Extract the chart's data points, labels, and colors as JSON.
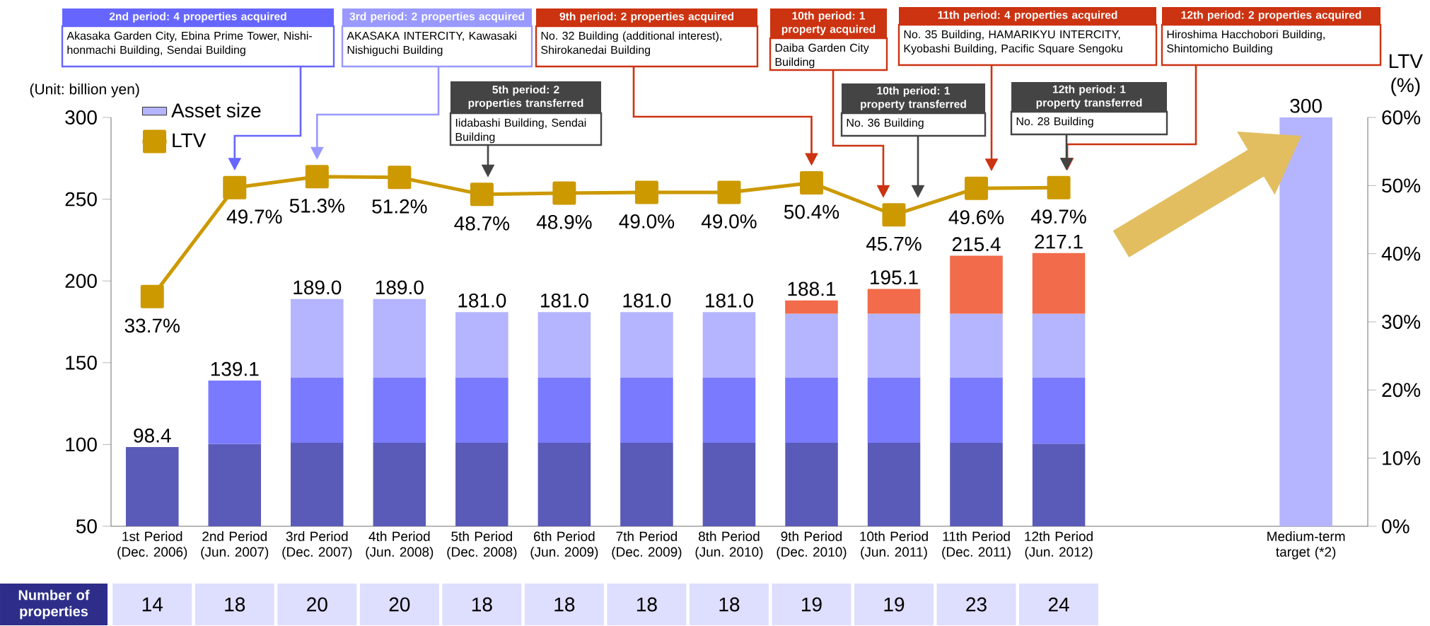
{
  "chart_data": [
    {
      "type": "bar",
      "stacked": true,
      "ylabel": "(Unit: billion yen)",
      "y2label": "LTV (%)",
      "legend": "top left",
      "marker": "square",
      "categories": [
        "1st Period (Dec. 2006)",
        "2nd Period (Jun. 2007)",
        "3rd Period (Dec. 2007)",
        "4th Period (Jun. 2008)",
        "5th Period (Dec. 2008)",
        "6th Period (Jun. 2009)",
        "7th Period (Dec. 2009)",
        "8th Period (Jun. 2010)",
        "9th Period (Dec. 2010)",
        "10th Period (Jun. 2011)",
        "11th Period (Dec. 2011)",
        "12th Period (Jun. 2012)",
        null,
        null,
        "Medium-term target (*2)"
      ],
      "ylim": [
        50,
        300
      ],
      "yticks": [
        50,
        100,
        150,
        200,
        250,
        300
      ],
      "y2lim": [
        0,
        60
      ],
      "y2ticks": [
        {
          "value": 0,
          "label": "0%"
        },
        {
          "value": 10,
          "label": "10%"
        },
        {
          "value": 20,
          "label": "20%"
        },
        {
          "value": 30,
          "label": "30%"
        },
        {
          "value": 40,
          "label": "40%"
        },
        {
          "value": 50,
          "label": "50%"
        },
        {
          "value": 60,
          "label": "60%"
        }
      ],
      "series": [
        {
          "color": "#5a5ab8",
          "values": [
            98.4,
            100.4,
            101,
            101,
            101,
            101,
            101,
            101,
            101,
            101,
            101,
            100.5,
            null,
            null,
            null
          ]
        },
        {
          "color": "#7a7aff",
          "base": [
            null,
            100.4,
            101,
            101,
            101,
            101,
            101,
            101,
            101,
            101,
            101,
            100.5,
            null,
            null,
            null
          ],
          "values": [
            null,
            38.7,
            40,
            40,
            40,
            40,
            40,
            40,
            40,
            40,
            40,
            40.5,
            null,
            null,
            null
          ]
        },
        {
          "name": "Asset size",
          "color": "#b4b4ff",
          "base": [
            null,
            null,
            141,
            141,
            141,
            141,
            141,
            141,
            141,
            141,
            141,
            141,
            null,
            null,
            null
          ],
          "values": [
            null,
            null,
            48,
            48,
            40,
            40,
            40,
            40,
            39,
            39,
            39,
            39,
            null,
            null,
            300
          ]
        },
        {
          "color": "#f26b4a",
          "base": [
            null,
            null,
            null,
            null,
            null,
            null,
            null,
            null,
            180,
            180,
            180,
            180,
            null,
            null,
            null
          ],
          "values": [
            null,
            null,
            null,
            null,
            null,
            null,
            null,
            null,
            8.1,
            15.1,
            35.4,
            37.1,
            null,
            null,
            null
          ]
        },
        {
          "name": "LTV",
          "type": "line",
          "axis": "y2",
          "color": "#cc9900",
          "values": [
            33.7,
            49.7,
            51.3,
            51.2,
            48.7,
            48.9,
            49.0,
            49.0,
            50.4,
            45.7,
            49.6,
            49.7,
            null,
            null,
            null
          ],
          "value_labels": [
            "33.7%",
            "49.7%",
            "51.3%",
            "51.2%",
            "48.7%",
            "48.9%",
            "49.0%",
            "49.0%",
            "50.4%",
            "45.7%",
            "49.6%",
            "49.7%",
            null,
            null,
            null
          ]
        }
      ],
      "totals": [
        "98.4",
        "139.1",
        "189.0",
        "189.0",
        "181.0",
        "181.0",
        "181.0",
        "181.0",
        "188.1",
        "195.1",
        "215.4",
        "217.1",
        null,
        null,
        "300"
      ],
      "annotations": [
        "2nd period: 4 properties acquired",
        "Akasaka Garden City, Ebina Prime Tower, Nishi-honmachi Building, Sendai Building",
        "3rd period: 2 properties acquired",
        "AKASAKA INTERCITY, Kawasaki Nishiguchi Building",
        "9th period: 2 properties acquired",
        "No. 32 Building (additional interest), Shirokanedai Building",
        "10th period: 1 property acquired",
        "Daiba Garden City Building",
        "11th period: 4 properties acquired",
        "No. 35 Building, HAMARIKYU INTERCITY, Kyobashi Building, Pacific Square Sengoku",
        "12th period: 2 properties acquired",
        "Hiroshima Hacchobori Building, Shintomicho Building",
        "5th period: 2 properties transferred",
        "Iidabashi Building, Sendai Building",
        "10th period: 1 property transferred",
        "No. 36 Building",
        "12th period: 1 property transferred",
        "No. 28 Building"
      ]
    },
    {
      "type": "other",
      "title": "Number of properties",
      "values": [
        14,
        18,
        20,
        20,
        18,
        18,
        18,
        18,
        19,
        19,
        23,
        24
      ],
      "data_labels": true
    }
  ]
}
